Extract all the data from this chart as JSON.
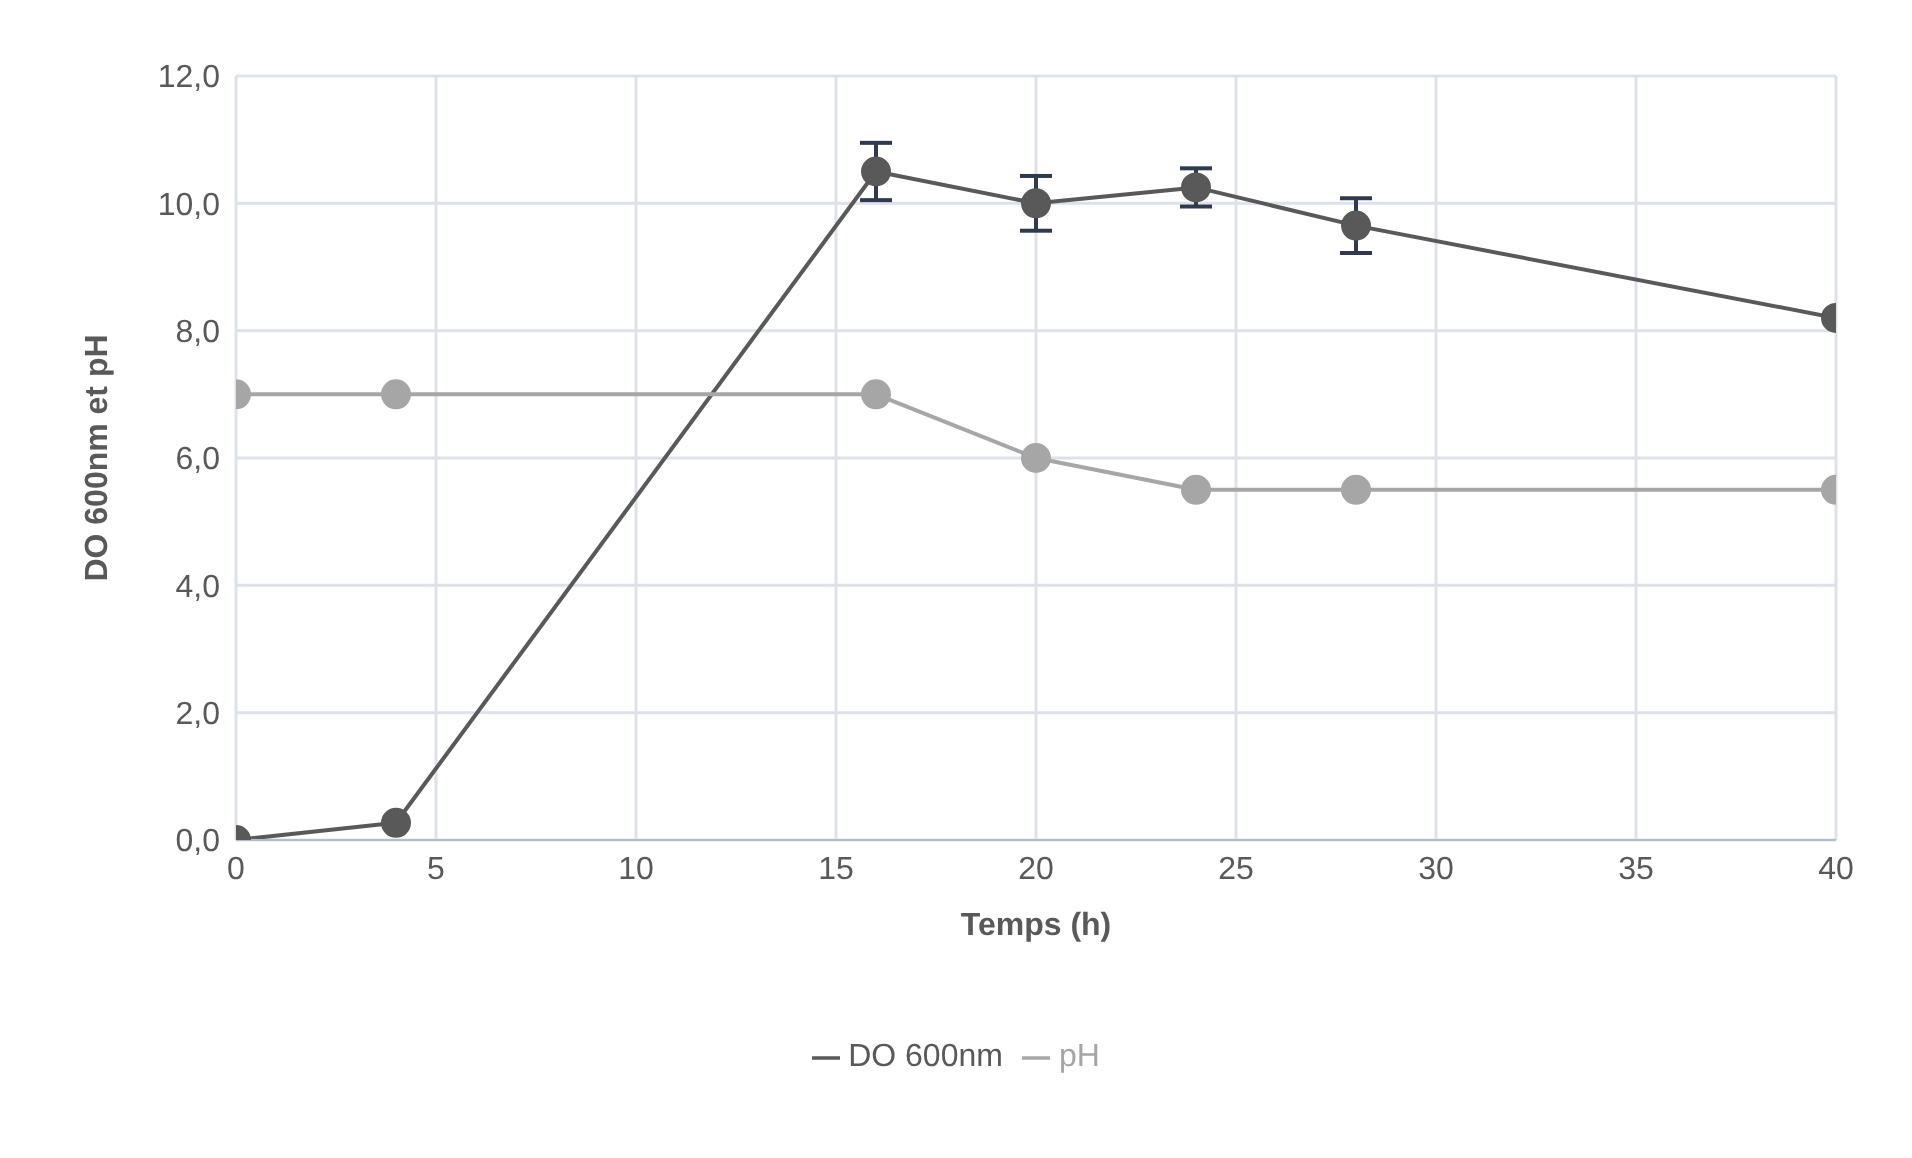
{
  "chart_data": {
    "type": "line",
    "xlabel": "Temps (h)",
    "ylabel": "DO 600nm et pH",
    "x": [
      0,
      4,
      16,
      20,
      24,
      28,
      40
    ],
    "series": [
      {
        "name": "DO 600nm",
        "color": "#595959",
        "values": [
          0,
          0.27,
          10.5,
          10.0,
          10.25,
          9.65,
          8.2
        ],
        "errors": [
          null,
          null,
          0.45,
          0.43,
          0.3,
          0.43,
          null
        ]
      },
      {
        "name": "pH",
        "color": "#a6a6a6",
        "values": [
          7,
          7,
          7,
          6,
          5.5,
          5.5,
          5.5
        ]
      }
    ],
    "xlim": [
      0,
      40
    ],
    "xticks": [
      0,
      5,
      10,
      15,
      20,
      25,
      30,
      35,
      40
    ],
    "ylim": [
      0,
      12
    ],
    "yticks": [
      {
        "value": 0,
        "label": "0,0"
      },
      {
        "value": 2,
        "label": "2,0"
      },
      {
        "value": 4,
        "label": "4,0"
      },
      {
        "value": 6,
        "label": "6,0"
      },
      {
        "value": 8,
        "label": "8,0"
      },
      {
        "value": 10,
        "label": "10,0"
      },
      {
        "value": 12,
        "label": "12,0"
      }
    ],
    "grid": true,
    "legend": "bottom",
    "marker": "circle",
    "line_style": "solid"
  }
}
